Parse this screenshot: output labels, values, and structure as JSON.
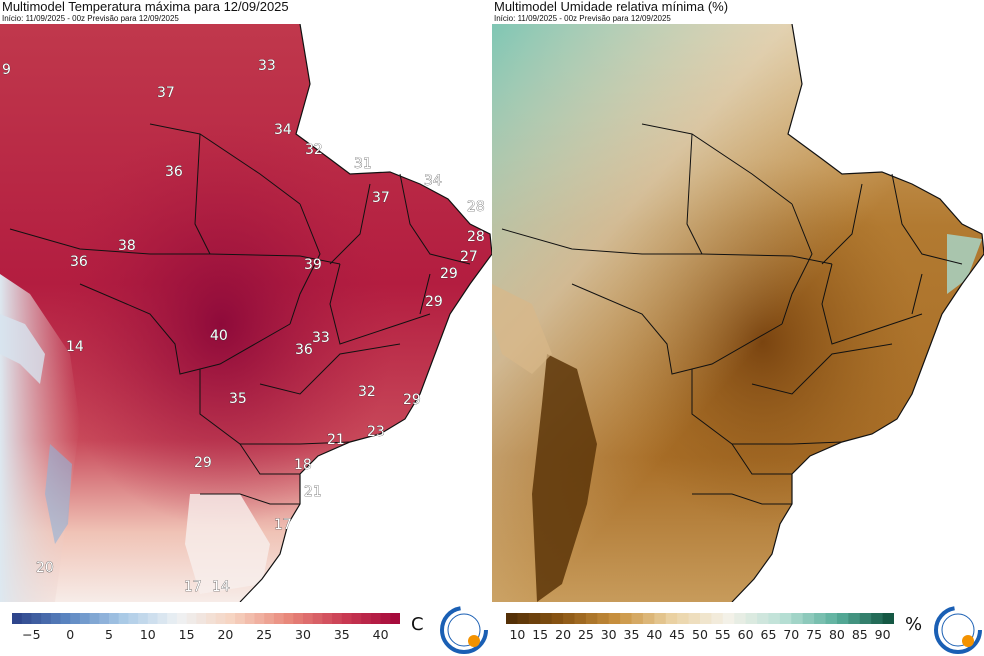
{
  "left_panel": {
    "title": "Multimodel Temperatura máxima para 12/09/2025",
    "subtitle": "Início: 11/09/2025 - 00z  Previsão para 12/09/2025",
    "unit": "C",
    "colorbar_ticks": [
      "−5",
      "0",
      "5",
      "10",
      "15",
      "20",
      "25",
      "30",
      "35",
      "40"
    ],
    "colorbar_range": [
      -7.5,
      42.5
    ],
    "colormap": [
      "#2a3f87",
      "#5b86c1",
      "#a9c9e6",
      "#eef2f4",
      "#f6d3c0",
      "#e8877a",
      "#c93a52",
      "#a3073a"
    ],
    "map_labels": [
      "9",
      "33",
      "37",
      "34",
      "32",
      "31",
      "34",
      "36",
      "37",
      "28",
      "28",
      "38",
      "36",
      "39",
      "27",
      "29",
      "29",
      "14",
      "40",
      "33",
      "36",
      "32",
      "35",
      "29",
      "21",
      "23",
      "29",
      "18",
      "21",
      "17",
      "20",
      "17",
      "14"
    ],
    "logo_text": "INPE"
  },
  "right_panel": {
    "title": "Multimodel Umidade relativa mínima (%)",
    "subtitle": "Início: 11/09/2025 - 00z  Previsão para 12/09/2025",
    "unit": "%",
    "colorbar_ticks": [
      "10",
      "15",
      "20",
      "25",
      "30",
      "35",
      "40",
      "45",
      "50",
      "55",
      "60",
      "65",
      "70",
      "75",
      "80",
      "85",
      "90"
    ],
    "colorbar_range": [
      7.5,
      92.5
    ],
    "colormap": [
      "#4e2c06",
      "#8a5513",
      "#c9913f",
      "#ead2a3",
      "#f4f1e8",
      "#b9e0d6",
      "#58ae9b",
      "#0d4e3a"
    ],
    "logo_text": "INPE"
  },
  "colors": {
    "map_left_base": "#b8223f",
    "map_right_base": "#b77b2c",
    "ocean": "#ffffff",
    "border": "#111111"
  }
}
